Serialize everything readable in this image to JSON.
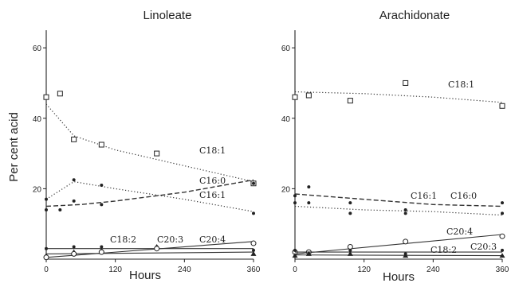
{
  "chart_data": [
    {
      "type": "line",
      "title": "Linoleate",
      "xlabel": "Hours",
      "ylabel": "Per cent acid",
      "xlim": [
        0,
        360
      ],
      "ylim": [
        0,
        65
      ],
      "xticks": [
        "0",
        "120",
        "240",
        "360"
      ],
      "yticks": [
        "20",
        "40",
        "60"
      ],
      "grid": false,
      "series": [
        {
          "name": "C18:1",
          "style": "dotted",
          "marker": "square",
          "points": [
            [
              0,
              46
            ],
            [
              24,
              47
            ],
            [
              48,
              34
            ],
            [
              96,
              32.5
            ],
            [
              192,
              30
            ],
            [
              360,
              21.5
            ]
          ],
          "fit": [
            [
              0,
              44
            ],
            [
              48,
              35
            ],
            [
              120,
              31
            ],
            [
              240,
              26.5
            ],
            [
              360,
              22
            ]
          ]
        },
        {
          "name": "C16:0",
          "style": "dashed",
          "marker": "dot",
          "points": [
            [
              0,
              14
            ],
            [
              24,
              14
            ],
            [
              48,
              16.5
            ],
            [
              96,
              15.5
            ],
            [
              360,
              21.5
            ]
          ],
          "fit": [
            [
              0,
              15
            ],
            [
              60,
              15.5
            ],
            [
              120,
              16.5
            ],
            [
              240,
              19
            ],
            [
              360,
              22.5
            ]
          ]
        },
        {
          "name": "C16:1",
          "style": "dotted",
          "marker": "dot",
          "points": [
            [
              0,
              17
            ],
            [
              48,
              22.5
            ],
            [
              96,
              21
            ],
            [
              360,
              13
            ]
          ],
          "fit": [
            [
              0,
              17
            ],
            [
              48,
              22
            ],
            [
              120,
              20
            ],
            [
              240,
              17
            ],
            [
              360,
              13.5
            ]
          ]
        },
        {
          "name": "C18:2",
          "style": "solid",
          "marker": "dot",
          "points": [
            [
              0,
              3
            ],
            [
              48,
              3.5
            ],
            [
              96,
              3.5
            ],
            [
              192,
              3.5
            ],
            [
              360,
              2.5
            ]
          ],
          "fit": [
            [
              0,
              3
            ],
            [
              360,
              3
            ]
          ]
        },
        {
          "name": "C20:3",
          "style": "solid",
          "marker": "triangle",
          "points": [
            [
              0,
              1
            ],
            [
              48,
              2
            ],
            [
              96,
              2.5
            ],
            [
              192,
              3.5
            ],
            [
              360,
              1.5
            ]
          ],
          "fit": [
            [
              0,
              1.5
            ],
            [
              360,
              2
            ]
          ]
        },
        {
          "name": "C20:4",
          "style": "solid",
          "marker": "circle",
          "points": [
            [
              0,
              0.5
            ],
            [
              48,
              1.5
            ],
            [
              96,
              2
            ],
            [
              192,
              3
            ],
            [
              360,
              4.5
            ]
          ],
          "fit": [
            [
              0,
              0.5
            ],
            [
              360,
              5
            ]
          ]
        }
      ],
      "annotations": [
        "C18:1",
        "C16:0",
        "C16:1",
        "C18:2",
        "C20:3",
        "C20:4"
      ]
    },
    {
      "type": "line",
      "title": "Arachidonate",
      "xlabel": "Hours",
      "ylabel": "",
      "xlim": [
        0,
        360
      ],
      "ylim": [
        0,
        65
      ],
      "xticks": [
        "0",
        "120",
        "240",
        "360"
      ],
      "yticks": [
        "20",
        "40",
        "60"
      ],
      "grid": false,
      "series": [
        {
          "name": "C18:1",
          "style": "dotted",
          "marker": "square",
          "points": [
            [
              0,
              46
            ],
            [
              24,
              46.5
            ],
            [
              96,
              45
            ],
            [
              192,
              50
            ],
            [
              360,
              43.5
            ]
          ],
          "fit": [
            [
              0,
              47.5
            ],
            [
              120,
              47
            ],
            [
              240,
              46
            ],
            [
              360,
              44.5
            ]
          ]
        },
        {
          "name": "C16:1",
          "style": "dashed",
          "marker": "dot",
          "points": [
            [
              0,
              18
            ],
            [
              24,
              20.5
            ],
            [
              96,
              16
            ],
            [
              192,
              14
            ],
            [
              360,
              16
            ]
          ],
          "fit": [
            [
              0,
              18.5
            ],
            [
              120,
              17
            ],
            [
              240,
              15.5
            ],
            [
              360,
              15
            ]
          ]
        },
        {
          "name": "C16:0",
          "style": "dotted",
          "marker": "dot",
          "points": [
            [
              0,
              16
            ],
            [
              24,
              16
            ],
            [
              96,
              13
            ],
            [
              192,
              13
            ],
            [
              360,
              13
            ]
          ],
          "fit": [
            [
              0,
              15
            ],
            [
              120,
              14
            ],
            [
              240,
              13.5
            ],
            [
              360,
              12.5
            ]
          ]
        },
        {
          "name": "C20:4",
          "style": "solid",
          "marker": "circle",
          "points": [
            [
              0,
              2
            ],
            [
              24,
              2
            ],
            [
              96,
              3.5
            ],
            [
              192,
              5
            ],
            [
              360,
              6.5
            ]
          ],
          "fit": [
            [
              0,
              1.5
            ],
            [
              360,
              7
            ]
          ]
        },
        {
          "name": "C18:2",
          "style": "solid",
          "marker": "dot",
          "points": [
            [
              0,
              2.5
            ],
            [
              24,
              1.5
            ],
            [
              96,
              2.5
            ],
            [
              192,
              1.5
            ],
            [
              360,
              2.5
            ]
          ],
          "fit": [
            [
              0,
              2
            ],
            [
              360,
              2
            ]
          ]
        },
        {
          "name": "C20:3",
          "style": "solid",
          "marker": "triangle",
          "points": [
            [
              0,
              1
            ],
            [
              24,
              1.5
            ],
            [
              96,
              1.5
            ],
            [
              192,
              1
            ],
            [
              360,
              1
            ]
          ],
          "fit": [
            [
              0,
              1.2
            ],
            [
              360,
              1
            ]
          ]
        }
      ],
      "annotations": [
        "C18:1",
        "C16:1",
        "C16:0",
        "C20:4",
        "C18:2",
        "C20:3"
      ]
    }
  ]
}
